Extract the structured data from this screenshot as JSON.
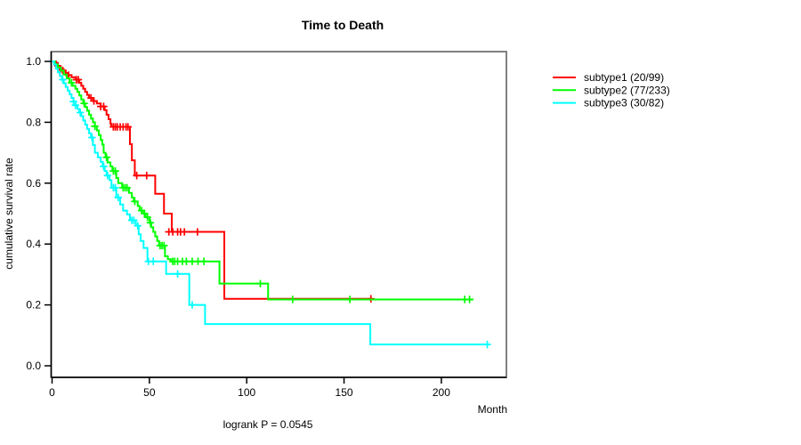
{
  "header": {
    "title": "Time to Death"
  },
  "footer": {
    "stat_annotation": "logrank P = 0.0545"
  },
  "chart_data": {
    "type": "line",
    "subtype": "kaplan-meier-step-curves",
    "title": "Time to Death",
    "xlabel": "Month",
    "ylabel": "cumulative survival rate",
    "annotation": "logrank P = 0.0545",
    "xlim": [
      0,
      233
    ],
    "ylim": [
      0,
      1
    ],
    "x_ticks": [
      0,
      50,
      100,
      150,
      200
    ],
    "y_tick_labels": [
      "0.0",
      "0.2",
      "0.4",
      "0.6",
      "0.8",
      "1.0"
    ],
    "grid": false,
    "legend_position": "right-outside",
    "axis_color": "#000000",
    "frame_color": "#808080",
    "series": [
      {
        "name": "subtype1",
        "label": "subtype1 (20/99)",
        "color": "#FF0000",
        "events": 20,
        "n": 99,
        "end_month": 163.8,
        "steps": [
          [
            0,
            1.0
          ],
          [
            2,
            0.995
          ],
          [
            3,
            0.985
          ],
          [
            4,
            0.975
          ],
          [
            5,
            0.97
          ],
          [
            7,
            0.962
          ],
          [
            8,
            0.955
          ],
          [
            10,
            0.948
          ],
          [
            12,
            0.94
          ],
          [
            14,
            0.93
          ],
          [
            15,
            0.92
          ],
          [
            16,
            0.91
          ],
          [
            17,
            0.9
          ],
          [
            18,
            0.89
          ],
          [
            19,
            0.88
          ],
          [
            21,
            0.87
          ],
          [
            23,
            0.862
          ],
          [
            25,
            0.852
          ],
          [
            27,
            0.84
          ],
          [
            28,
            0.825
          ],
          [
            29,
            0.81
          ],
          [
            30,
            0.795
          ],
          [
            30.5,
            0.785
          ],
          [
            40,
            0.728
          ],
          [
            41,
            0.675
          ],
          [
            42.5,
            0.625
          ],
          [
            53,
            0.565
          ],
          [
            57.5,
            0.5
          ],
          [
            61.5,
            0.44
          ],
          [
            88.5,
            0.22
          ]
        ],
        "censors": [
          [
            3,
            0.985
          ],
          [
            4.5,
            0.975
          ],
          [
            5.5,
            0.97
          ],
          [
            8.5,
            0.955
          ],
          [
            12.5,
            0.94
          ],
          [
            13.5,
            0.94
          ],
          [
            20,
            0.88
          ],
          [
            21.5,
            0.87
          ],
          [
            25,
            0.852
          ],
          [
            26.5,
            0.852
          ],
          [
            31.5,
            0.785
          ],
          [
            32.5,
            0.785
          ],
          [
            33.5,
            0.785
          ],
          [
            35,
            0.785
          ],
          [
            36.5,
            0.785
          ],
          [
            38,
            0.785
          ],
          [
            39,
            0.785
          ],
          [
            43.5,
            0.625
          ],
          [
            48.6,
            0.625
          ],
          [
            60,
            0.44
          ],
          [
            62,
            0.44
          ],
          [
            64.5,
            0.44
          ],
          [
            66,
            0.44
          ],
          [
            68,
            0.44
          ],
          [
            74.7,
            0.44
          ],
          [
            163.8,
            0.22
          ]
        ]
      },
      {
        "name": "subtype2",
        "label": "subtype2 (77/233)",
        "color": "#00FF00",
        "events": 77,
        "n": 233,
        "end_month": 216.5,
        "steps": [
          [
            0,
            1.0
          ],
          [
            1.5,
            0.99
          ],
          [
            3,
            0.98
          ],
          [
            4.5,
            0.97
          ],
          [
            6,
            0.957
          ],
          [
            7.5,
            0.944
          ],
          [
            9,
            0.93
          ],
          [
            10.5,
            0.92
          ],
          [
            12,
            0.91
          ],
          [
            13,
            0.9
          ],
          [
            14,
            0.888
          ],
          [
            15,
            0.875
          ],
          [
            16,
            0.862
          ],
          [
            17,
            0.85
          ],
          [
            18,
            0.838
          ],
          [
            19,
            0.825
          ],
          [
            20,
            0.812
          ],
          [
            21,
            0.8
          ],
          [
            22,
            0.787
          ],
          [
            23,
            0.773
          ],
          [
            24,
            0.758
          ],
          [
            25,
            0.742
          ],
          [
            25.8,
            0.727
          ],
          [
            26.5,
            0.7
          ],
          [
            27.5,
            0.685
          ],
          [
            28.5,
            0.668
          ],
          [
            30,
            0.655
          ],
          [
            31,
            0.64
          ],
          [
            33,
            0.617
          ],
          [
            34,
            0.6
          ],
          [
            36,
            0.585
          ],
          [
            39.5,
            0.568
          ],
          [
            41,
            0.553
          ],
          [
            42,
            0.54
          ],
          [
            44,
            0.525
          ],
          [
            45,
            0.51
          ],
          [
            47,
            0.5
          ],
          [
            48,
            0.488
          ],
          [
            50,
            0.47
          ],
          [
            51,
            0.455
          ],
          [
            52,
            0.44
          ],
          [
            53,
            0.425
          ],
          [
            54,
            0.41
          ],
          [
            55,
            0.395
          ],
          [
            58,
            0.36
          ],
          [
            59.5,
            0.35
          ],
          [
            61,
            0.343
          ],
          [
            86,
            0.27
          ],
          [
            111,
            0.218
          ]
        ],
        "censors": [
          [
            10,
            0.93
          ],
          [
            16.5,
            0.862
          ],
          [
            22,
            0.787
          ],
          [
            28,
            0.685
          ],
          [
            31.5,
            0.64
          ],
          [
            32.5,
            0.64
          ],
          [
            36.5,
            0.585
          ],
          [
            37.5,
            0.585
          ],
          [
            38.5,
            0.585
          ],
          [
            42.5,
            0.54
          ],
          [
            46,
            0.51
          ],
          [
            47.5,
            0.5
          ],
          [
            49,
            0.488
          ],
          [
            50.5,
            0.47
          ],
          [
            55.5,
            0.395
          ],
          [
            56.5,
            0.395
          ],
          [
            57.5,
            0.395
          ],
          [
            62,
            0.343
          ],
          [
            63,
            0.343
          ],
          [
            64.5,
            0.343
          ],
          [
            67,
            0.343
          ],
          [
            69,
            0.343
          ],
          [
            72,
            0.343
          ],
          [
            75,
            0.343
          ],
          [
            78,
            0.343
          ],
          [
            107,
            0.27
          ],
          [
            123.6,
            0.218
          ],
          [
            153,
            0.218
          ],
          [
            212,
            0.218
          ],
          [
            214.5,
            0.218
          ]
        ]
      },
      {
        "name": "subtype3",
        "label": "subtype3 (30/82)",
        "color": "#00FFFF",
        "events": 30,
        "n": 82,
        "end_month": 224.7,
        "steps": [
          [
            0,
            1.0
          ],
          [
            1,
            0.99
          ],
          [
            2,
            0.976
          ],
          [
            3,
            0.964
          ],
          [
            4,
            0.952
          ],
          [
            5,
            0.94
          ],
          [
            6,
            0.928
          ],
          [
            7,
            0.916
          ],
          [
            8,
            0.904
          ],
          [
            9,
            0.892
          ],
          [
            10,
            0.88
          ],
          [
            11,
            0.868
          ],
          [
            12,
            0.856
          ],
          [
            13,
            0.844
          ],
          [
            14,
            0.832
          ],
          [
            15,
            0.82
          ],
          [
            16,
            0.806
          ],
          [
            17,
            0.792
          ],
          [
            18,
            0.778
          ],
          [
            19,
            0.764
          ],
          [
            20,
            0.75
          ],
          [
            21,
            0.725
          ],
          [
            22,
            0.7
          ],
          [
            23.5,
            0.685
          ],
          [
            25,
            0.67
          ],
          [
            26,
            0.655
          ],
          [
            27,
            0.64
          ],
          [
            28,
            0.625
          ],
          [
            29.5,
            0.61
          ],
          [
            30.5,
            0.585
          ],
          [
            33,
            0.553
          ],
          [
            35,
            0.53
          ],
          [
            36.5,
            0.51
          ],
          [
            38.5,
            0.497
          ],
          [
            40,
            0.478
          ],
          [
            43,
            0.46
          ],
          [
            44.5,
            0.432
          ],
          [
            45.5,
            0.41
          ],
          [
            47,
            0.387
          ],
          [
            49,
            0.343
          ],
          [
            58.6,
            0.302
          ],
          [
            70.5,
            0.2
          ],
          [
            78.6,
            0.137
          ],
          [
            163.5,
            0.07
          ]
        ],
        "censors": [
          [
            5.5,
            0.94
          ],
          [
            11,
            0.868
          ],
          [
            12,
            0.856
          ],
          [
            14.5,
            0.832
          ],
          [
            20.5,
            0.75
          ],
          [
            26.5,
            0.655
          ],
          [
            28.5,
            0.625
          ],
          [
            31.5,
            0.585
          ],
          [
            32.5,
            0.585
          ],
          [
            34,
            0.553
          ],
          [
            41,
            0.478
          ],
          [
            42,
            0.478
          ],
          [
            44,
            0.46
          ],
          [
            49.5,
            0.343
          ],
          [
            52,
            0.343
          ],
          [
            64.5,
            0.302
          ],
          [
            72,
            0.2
          ],
          [
            223.6,
            0.07
          ]
        ]
      }
    ]
  }
}
